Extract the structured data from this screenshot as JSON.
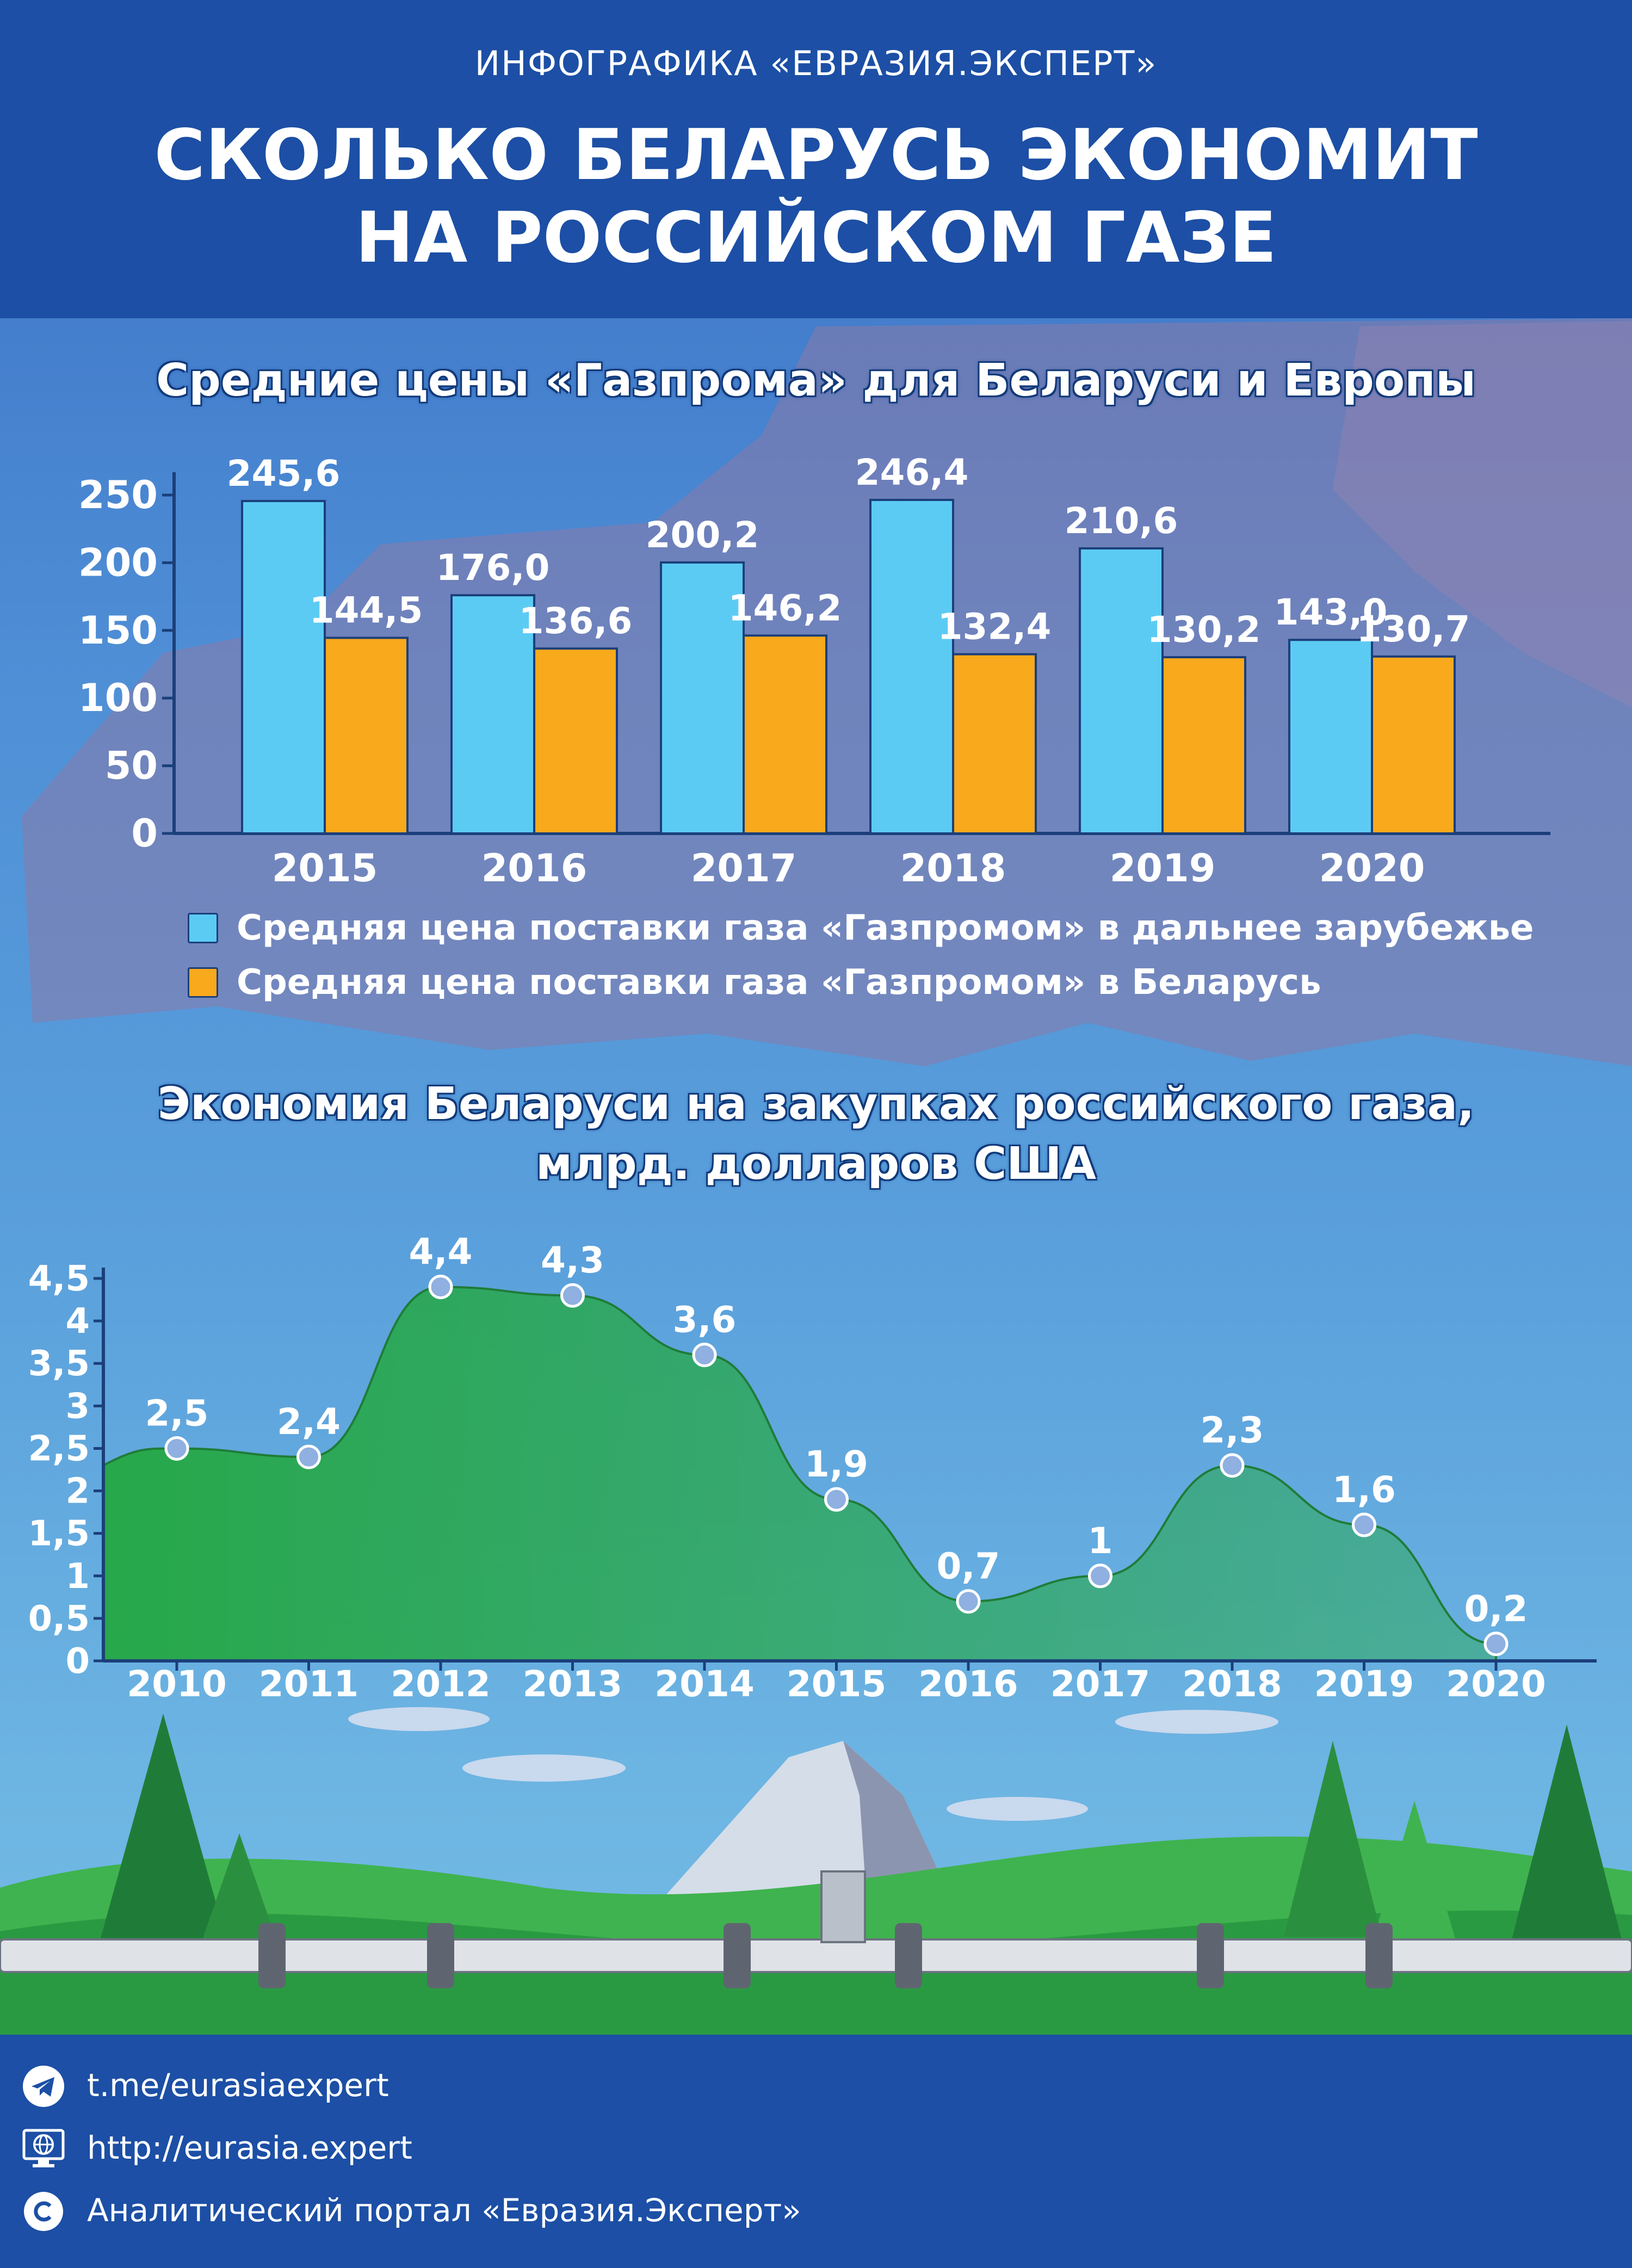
{
  "header": {
    "supertitle": "ИНФОГРАФИКА «ЕВРАЗИЯ.ЭКСПЕРТ»",
    "title_line1": "СКОЛЬКО БЕЛАРУСЬ ЭКОНОМИТ",
    "title_line2": "НА РОССИЙСКОМ ГАЗЕ"
  },
  "chart_data": [
    {
      "type": "bar",
      "title": "Средние цены «Газпрома» для Беларуси и Европы",
      "categories": [
        "2015",
        "2016",
        "2017",
        "2018",
        "2019",
        "2020"
      ],
      "series": [
        {
          "name": "Средняя цена поставки газа «Газпромом» в дальнее зарубежье",
          "values": [
            245.6,
            176.0,
            200.2,
            246.4,
            210.6,
            143.0
          ],
          "labels": [
            "245,6",
            "176,0",
            "200,2",
            "246,4",
            "210,6",
            "143,0"
          ],
          "color": "#5ccbf3"
        },
        {
          "name": "Средняя цена поставки газа «Газпромом» в Беларусь",
          "values": [
            144.5,
            136.6,
            146.2,
            132.4,
            130.2,
            130.7
          ],
          "labels": [
            "144,5",
            "136,6",
            "146,2",
            "132,4",
            "130,2",
            "130,7"
          ],
          "color": "#f8a91c"
        }
      ],
      "ylim": [
        0,
        250
      ],
      "yticks": [
        "0",
        "50",
        "100",
        "150",
        "200",
        "250"
      ],
      "legend": "bottom"
    },
    {
      "type": "area",
      "title_line1": "Экономия Беларуси на закупках российского газа,",
      "title_line2": "млрд. долларов США",
      "x": [
        "2010",
        "2011",
        "2012",
        "2013",
        "2014",
        "2015",
        "2016",
        "2017",
        "2018",
        "2019",
        "2020"
      ],
      "y": [
        2.5,
        2.4,
        4.4,
        4.3,
        3.6,
        1.9,
        0.7,
        1,
        2.3,
        1.6,
        0.2
      ],
      "labels": [
        "2,5",
        "2,4",
        "4,4",
        "4,3",
        "3,6",
        "1,9",
        "0,7",
        "1",
        "2,3",
        "1,6",
        "0,2"
      ],
      "ylim": [
        0,
        4.5
      ],
      "yticks": [
        "0",
        "0,5",
        "1",
        "1,5",
        "2",
        "2,5",
        "3",
        "3,5",
        "4",
        "4,5"
      ],
      "color": "#27a84a"
    }
  ],
  "footer": {
    "telegram": "t.me/eurasiaexpert",
    "website": "http://eurasia.expert",
    "copyright": "Аналитический портал «Евразия.Эксперт»"
  }
}
